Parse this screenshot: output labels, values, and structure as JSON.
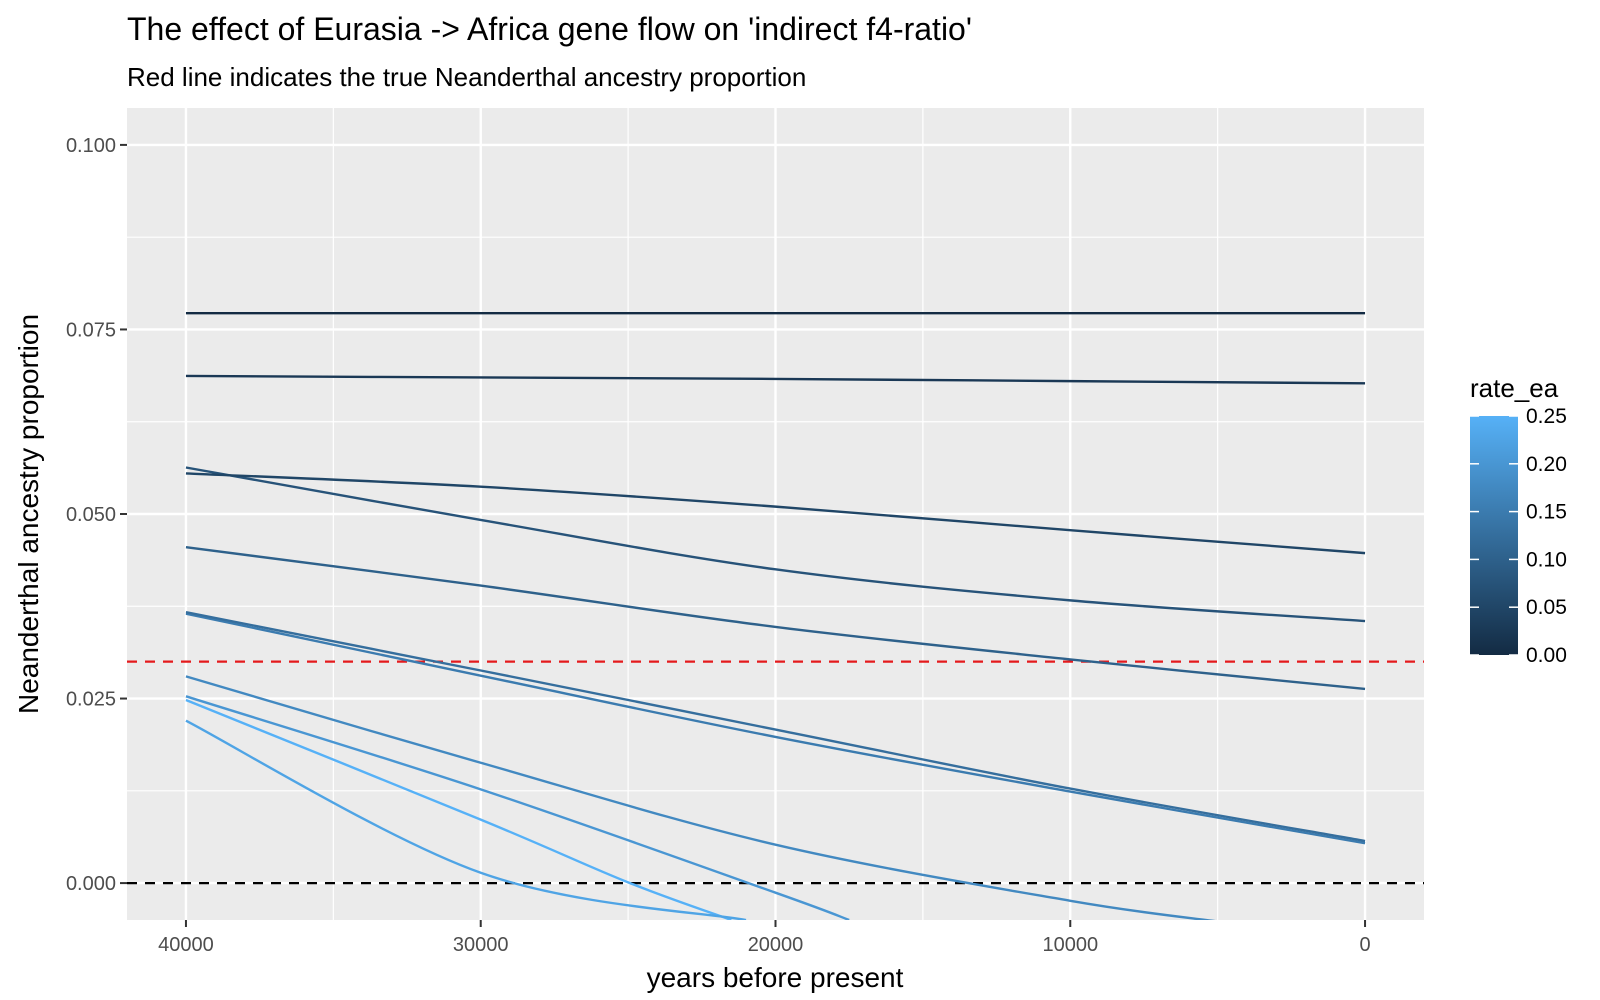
{
  "chart_data": {
    "type": "line",
    "title": "The effect of Eurasia -> Africa gene flow on 'indirect f4-ratio'",
    "subtitle": "Red line indicates the true Neanderthal ancestry proportion",
    "xlabel": "years before present",
    "ylabel": "Neanderthal ancestry proportion",
    "x_reversed": true,
    "xlim": [
      42000,
      -2000
    ],
    "ylim": [
      -0.005,
      0.105
    ],
    "x_ticks": [
      40000,
      30000,
      20000,
      10000,
      0
    ],
    "x_tick_labels": [
      "40000",
      "30000",
      "20000",
      "10000",
      "0"
    ],
    "y_ticks": [
      0.0,
      0.025,
      0.05,
      0.075,
      0.1
    ],
    "y_tick_labels": [
      "0.000",
      "0.025",
      "0.050",
      "0.075",
      "0.100"
    ],
    "grid": true,
    "hlines": [
      {
        "y": 0.03,
        "color": "#e41a1c",
        "style": "dashed"
      },
      {
        "y": 0.0,
        "color": "#000000",
        "style": "dashed"
      }
    ],
    "legend": {
      "title": "rate_ea",
      "position": "right",
      "type": "colorbar",
      "range": [
        0.0,
        0.25
      ],
      "ticks": [
        0.0,
        0.05,
        0.1,
        0.15,
        0.2,
        0.25
      ],
      "tick_labels": [
        "0.00",
        "0.05",
        "0.10",
        "0.15",
        "0.20",
        "0.25"
      ],
      "low_color": "#132B43",
      "high_color": "#56B1F7"
    },
    "series": [
      {
        "rate_ea": 0.0,
        "x": [
          40000,
          30000,
          20000,
          10000,
          0
        ],
        "y": [
          0.0772,
          0.0772,
          0.0772,
          0.0772,
          0.0772
        ]
      },
      {
        "rate_ea": 0.025,
        "x": [
          40000,
          30000,
          20000,
          10000,
          0
        ],
        "y": [
          0.0687,
          0.0685,
          0.0683,
          0.068,
          0.0677
        ]
      },
      {
        "rate_ea": 0.05,
        "x": [
          40000,
          30000,
          20000,
          10000,
          0
        ],
        "y": [
          0.0555,
          0.0537,
          0.051,
          0.0478,
          0.0447
        ]
      },
      {
        "rate_ea": 0.075,
        "x": [
          40000,
          30000,
          20000,
          10000,
          0
        ],
        "y": [
          0.0563,
          0.0492,
          0.0425,
          0.0383,
          0.0355
        ]
      },
      {
        "rate_ea": 0.1,
        "x": [
          40000,
          30000,
          20000,
          10000,
          0
        ],
        "y": [
          0.0455,
          0.0403,
          0.0347,
          0.0303,
          0.0263
        ]
      },
      {
        "rate_ea": 0.125,
        "x": [
          40000,
          30000,
          20000,
          10000,
          0
        ],
        "y": [
          0.0367,
          0.0288,
          0.0208,
          0.0128,
          0.0057
        ]
      },
      {
        "rate_ea": 0.15,
        "x": [
          40000,
          30000,
          20000,
          10000,
          0
        ],
        "y": [
          0.0365,
          0.0281,
          0.0198,
          0.0124,
          0.0054
        ]
      },
      {
        "rate_ea": 0.175,
        "x": [
          40000,
          30000,
          20000,
          10000,
          0,
          5000
        ],
        "y": [
          0.028,
          0.0163,
          0.0052,
          -0.0024,
          null,
          -0.0052
        ]
      },
      {
        "rate_ea": 0.2,
        "x": [
          40000,
          30000,
          20000,
          17500
        ],
        "y": [
          0.0253,
          0.0127,
          -0.0013,
          -0.005
        ]
      },
      {
        "rate_ea": 0.225,
        "x": [
          40000,
          30000,
          21000
        ],
        "y": [
          0.022,
          0.0014,
          -0.005
        ]
      },
      {
        "rate_ea": 0.25,
        "x": [
          40000,
          30000,
          25000,
          21500
        ],
        "y": [
          0.0248,
          0.0086,
          0.0001,
          -0.005
        ]
      }
    ]
  }
}
